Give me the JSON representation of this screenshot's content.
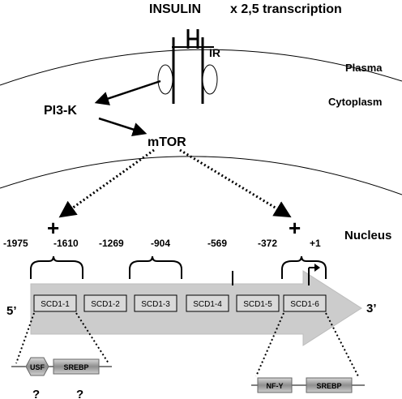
{
  "header": {
    "insulin": "INSULIN",
    "transcription": "x 2,5 transcription"
  },
  "receptor": {
    "label": "IR"
  },
  "compartments": {
    "plasma": "Plasma",
    "cytoplasm": "Cytoplasm",
    "nucleus": "Nucleus"
  },
  "signaling": {
    "pi3k": "PI3-K",
    "mtor": "mTOR"
  },
  "plus_signs": [
    "+",
    "+"
  ],
  "positions": [
    "-1975",
    "-1610",
    "-1269",
    "-904",
    "-569",
    "-372",
    "+1"
  ],
  "gene": {
    "five_prime": "5’",
    "three_prime": "3’",
    "boxes": [
      "SCD1-1",
      "SCD1-2",
      "SCD1-3",
      "SCD1-4",
      "SCD1-5",
      "SCD1-6"
    ]
  },
  "factors_left": {
    "usf": "USF",
    "srebp": "SREBP",
    "q1": "?",
    "q2": "?"
  },
  "factors_right": {
    "nfy": "NF-Y",
    "srebp": "SREBP"
  },
  "colors": {
    "arrow_fill": "#cccccc",
    "box_fill": "#d9d9d9",
    "factor_fill": "#9a9a9a"
  }
}
